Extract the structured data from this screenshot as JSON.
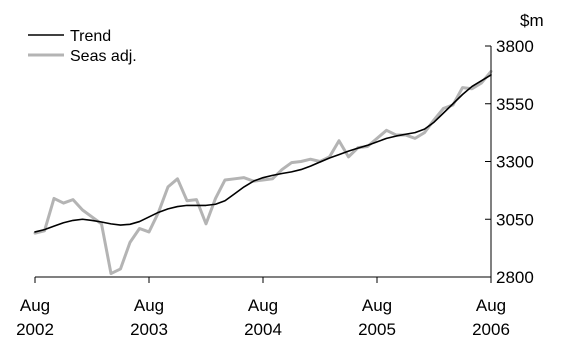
{
  "chart_data": {
    "type": "line",
    "unit_label": "$m",
    "ylim": [
      2800,
      3800
    ],
    "y_ticks": [
      2800,
      3050,
      3300,
      3550,
      3800
    ],
    "y_tick_labels": [
      "2800",
      "3050",
      "3300",
      "3550",
      "3800"
    ],
    "x_start": "2002-08",
    "x_end": "2006-08",
    "x_ticks": [
      {
        "month": "2002-08",
        "line1": "Aug",
        "line2": "2002"
      },
      {
        "month": "2003-08",
        "line1": "Aug",
        "line2": "2003"
      },
      {
        "month": "2004-08",
        "line1": "Aug",
        "line2": "2004"
      },
      {
        "month": "2005-08",
        "line1": "Aug",
        "line2": "2005"
      },
      {
        "month": "2006-08",
        "line1": "Aug",
        "line2": "2006"
      }
    ],
    "legend_position": "top-left",
    "grid": false,
    "series": [
      {
        "name": "Trend",
        "color": "#000000",
        "points": [
          [
            "2002-08",
            2995
          ],
          [
            "2002-09",
            3005
          ],
          [
            "2002-10",
            3020
          ],
          [
            "2002-11",
            3035
          ],
          [
            "2002-12",
            3045
          ],
          [
            "2003-01",
            3050
          ],
          [
            "2003-02",
            3045
          ],
          [
            "2003-03",
            3038
          ],
          [
            "2003-04",
            3030
          ],
          [
            "2003-05",
            3025
          ],
          [
            "2003-06",
            3028
          ],
          [
            "2003-07",
            3040
          ],
          [
            "2003-08",
            3060
          ],
          [
            "2003-09",
            3080
          ],
          [
            "2003-10",
            3095
          ],
          [
            "2003-11",
            3105
          ],
          [
            "2003-12",
            3110
          ],
          [
            "2004-01",
            3110
          ],
          [
            "2004-02",
            3110
          ],
          [
            "2004-03",
            3115
          ],
          [
            "2004-04",
            3130
          ],
          [
            "2004-05",
            3160
          ],
          [
            "2004-06",
            3190
          ],
          [
            "2004-07",
            3215
          ],
          [
            "2004-08",
            3230
          ],
          [
            "2004-09",
            3240
          ],
          [
            "2004-10",
            3248
          ],
          [
            "2004-11",
            3255
          ],
          [
            "2004-12",
            3265
          ],
          [
            "2005-01",
            3280
          ],
          [
            "2005-02",
            3298
          ],
          [
            "2005-03",
            3315
          ],
          [
            "2005-04",
            3330
          ],
          [
            "2005-05",
            3345
          ],
          [
            "2005-06",
            3358
          ],
          [
            "2005-07",
            3370
          ],
          [
            "2005-08",
            3385
          ],
          [
            "2005-09",
            3400
          ],
          [
            "2005-10",
            3410
          ],
          [
            "2005-11",
            3418
          ],
          [
            "2005-12",
            3425
          ],
          [
            "2006-01",
            3440
          ],
          [
            "2006-02",
            3470
          ],
          [
            "2006-03",
            3510
          ],
          [
            "2006-04",
            3550
          ],
          [
            "2006-05",
            3590
          ],
          [
            "2006-06",
            3625
          ],
          [
            "2006-07",
            3650
          ],
          [
            "2006-08",
            3675
          ]
        ]
      },
      {
        "name": "Seas adj.",
        "color": "#b4b4b4",
        "points": [
          [
            "2002-08",
            2990
          ],
          [
            "2002-09",
            3000
          ],
          [
            "2002-10",
            3140
          ],
          [
            "2002-11",
            3120
          ],
          [
            "2002-12",
            3135
          ],
          [
            "2003-01",
            3090
          ],
          [
            "2003-02",
            3060
          ],
          [
            "2003-03",
            3030
          ],
          [
            "2003-04",
            2815
          ],
          [
            "2003-05",
            2835
          ],
          [
            "2003-06",
            2950
          ],
          [
            "2003-07",
            3010
          ],
          [
            "2003-08",
            2995
          ],
          [
            "2003-09",
            3080
          ],
          [
            "2003-10",
            3190
          ],
          [
            "2003-11",
            3225
          ],
          [
            "2003-12",
            3130
          ],
          [
            "2004-01",
            3135
          ],
          [
            "2004-02",
            3030
          ],
          [
            "2004-03",
            3140
          ],
          [
            "2004-04",
            3220
          ],
          [
            "2004-05",
            3225
          ],
          [
            "2004-06",
            3230
          ],
          [
            "2004-07",
            3215
          ],
          [
            "2004-08",
            3220
          ],
          [
            "2004-09",
            3225
          ],
          [
            "2004-10",
            3265
          ],
          [
            "2004-11",
            3295
          ],
          [
            "2004-12",
            3300
          ],
          [
            "2005-01",
            3310
          ],
          [
            "2005-02",
            3300
          ],
          [
            "2005-03",
            3320
          ],
          [
            "2005-04",
            3390
          ],
          [
            "2005-05",
            3320
          ],
          [
            "2005-06",
            3360
          ],
          [
            "2005-07",
            3365
          ],
          [
            "2005-08",
            3400
          ],
          [
            "2005-09",
            3435
          ],
          [
            "2005-10",
            3415
          ],
          [
            "2005-11",
            3415
          ],
          [
            "2005-12",
            3400
          ],
          [
            "2006-01",
            3425
          ],
          [
            "2006-02",
            3480
          ],
          [
            "2006-03",
            3530
          ],
          [
            "2006-04",
            3545
          ],
          [
            "2006-05",
            3620
          ],
          [
            "2006-06",
            3615
          ],
          [
            "2006-07",
            3640
          ],
          [
            "2006-08",
            3690
          ]
        ]
      }
    ]
  }
}
